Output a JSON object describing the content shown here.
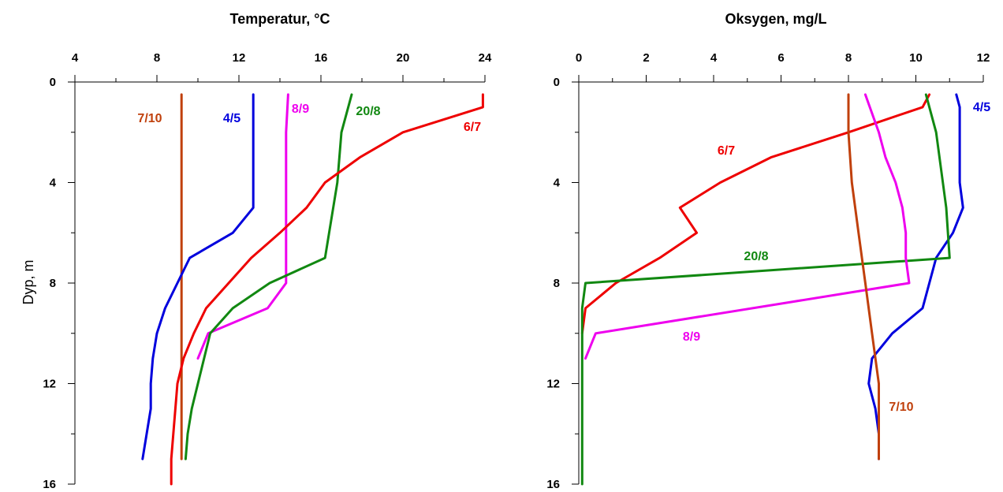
{
  "chart_data": [
    {
      "type": "line",
      "title": "Temperatur, °C",
      "ylabel": "Dyp, m",
      "xlim": [
        4,
        24
      ],
      "ylim": [
        0,
        16
      ],
      "xticks": [
        "4",
        "8",
        "12",
        "16",
        "20",
        "24"
      ],
      "yticks": [
        "0",
        "4",
        "8",
        "12",
        "16"
      ],
      "series": [
        {
          "name": "7/10",
          "color": "#c0400c",
          "points": [
            [
              9.2,
              0.5
            ],
            [
              9.2,
              15
            ]
          ]
        },
        {
          "name": "4/5",
          "color": "#0000dd",
          "points": [
            [
              12.7,
              0.5
            ],
            [
              12.7,
              4
            ],
            [
              12.7,
              5
            ],
            [
              11.7,
              6
            ],
            [
              9.6,
              7
            ],
            [
              9,
              8
            ],
            [
              8.4,
              9
            ],
            [
              8,
              10
            ],
            [
              7.8,
              11
            ],
            [
              7.7,
              12
            ],
            [
              7.7,
              13
            ],
            [
              7.5,
              14
            ],
            [
              7.3,
              15
            ]
          ]
        },
        {
          "name": "8/9",
          "color": "#ee00ee",
          "points": [
            [
              14.4,
              0.5
            ],
            [
              14.3,
              2
            ],
            [
              14.3,
              3
            ],
            [
              14.3,
              8
            ],
            [
              13.4,
              9
            ],
            [
              10.5,
              10
            ],
            [
              10,
              11
            ]
          ]
        },
        {
          "name": "20/8",
          "color": "#118811",
          "points": [
            [
              17.5,
              0.5
            ],
            [
              17,
              2
            ],
            [
              16.8,
              4
            ],
            [
              16.6,
              5
            ],
            [
              16.2,
              7
            ],
            [
              13.5,
              8
            ],
            [
              11.7,
              9
            ],
            [
              10.6,
              10
            ],
            [
              10.3,
              11
            ],
            [
              10,
              12
            ],
            [
              9.7,
              13
            ],
            [
              9.5,
              14
            ],
            [
              9.4,
              15
            ]
          ]
        },
        {
          "name": "6/7",
          "color": "#ee0000",
          "points": [
            [
              23.9,
              0.5
            ],
            [
              23.9,
              1
            ],
            [
              20,
              2
            ],
            [
              17.9,
              3
            ],
            [
              16.2,
              4
            ],
            [
              15.3,
              5
            ],
            [
              14,
              6
            ],
            [
              12.6,
              7
            ],
            [
              11.5,
              8
            ],
            [
              10.4,
              9
            ],
            [
              9.8,
              10
            ],
            [
              9.3,
              11
            ],
            [
              9,
              12
            ],
            [
              8.9,
              13
            ],
            [
              8.8,
              14
            ],
            [
              8.7,
              15
            ],
            [
              8.7,
              16
            ]
          ]
        }
      ]
    },
    {
      "type": "line",
      "title": "Oksygen, mg/L",
      "ylabel": "",
      "xlim": [
        0,
        12
      ],
      "ylim": [
        0,
        16
      ],
      "xticks": [
        "0",
        "2",
        "4",
        "6",
        "8",
        "10",
        "12"
      ],
      "yticks": [
        "0",
        "4",
        "8",
        "12",
        "16"
      ],
      "series": [
        {
          "name": "6/7",
          "color": "#ee0000",
          "points": [
            [
              10.4,
              0.5
            ],
            [
              10.2,
              1
            ],
            [
              8,
              2
            ],
            [
              5.7,
              3
            ],
            [
              4.2,
              4
            ],
            [
              3,
              5
            ],
            [
              3.5,
              6
            ],
            [
              2.4,
              7
            ],
            [
              1.1,
              8
            ],
            [
              0.2,
              9
            ],
            [
              0.1,
              10
            ]
          ]
        },
        {
          "name": "4/5",
          "color": "#0000dd",
          "points": [
            [
              11.2,
              0.5
            ],
            [
              11.3,
              1
            ],
            [
              11.3,
              2
            ],
            [
              11.3,
              3
            ],
            [
              11.3,
              4
            ],
            [
              11.4,
              5
            ],
            [
              11.1,
              6
            ],
            [
              10.6,
              7
            ],
            [
              10.4,
              8
            ],
            [
              10.2,
              9
            ],
            [
              9.3,
              10
            ],
            [
              8.7,
              11
            ],
            [
              8.6,
              12
            ],
            [
              8.8,
              13
            ],
            [
              8.9,
              14
            ],
            [
              8.9,
              15
            ]
          ]
        },
        {
          "name": "20/8",
          "color": "#118811",
          "points": [
            [
              10.3,
              0.5
            ],
            [
              10.6,
              2
            ],
            [
              10.9,
              5
            ],
            [
              11,
              7
            ],
            [
              0.2,
              8
            ],
            [
              0.1,
              9
            ],
            [
              0.1,
              16
            ]
          ]
        },
        {
          "name": "8/9",
          "color": "#ee00ee",
          "points": [
            [
              8.5,
              0.5
            ],
            [
              8.9,
              2
            ],
            [
              9.1,
              3
            ],
            [
              9.4,
              4
            ],
            [
              9.6,
              5
            ],
            [
              9.7,
              6
            ],
            [
              9.7,
              7
            ],
            [
              9.8,
              8
            ],
            [
              0.5,
              10
            ],
            [
              0.2,
              11
            ]
          ]
        },
        {
          "name": "7/10",
          "color": "#c0400c",
          "points": [
            [
              8,
              0.5
            ],
            [
              8,
              2
            ],
            [
              8.1,
              4
            ],
            [
              8.3,
              6
            ],
            [
              8.5,
              8
            ],
            [
              8.7,
              10
            ],
            [
              8.9,
              12
            ],
            [
              8.9,
              15
            ]
          ]
        }
      ]
    }
  ]
}
